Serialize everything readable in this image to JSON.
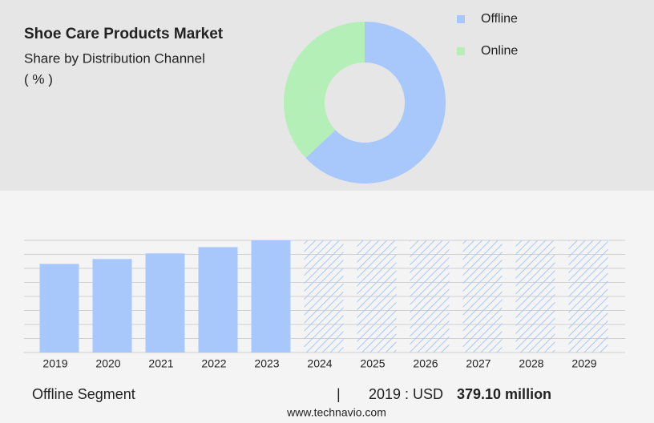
{
  "chart_data": [
    {
      "type": "pie",
      "title": "Shoe Care Products Market",
      "subtitle": "Share by Distribution Channel",
      "unit": "( % )",
      "categories": [
        "Offline",
        "Online"
      ],
      "values": [
        63,
        37
      ],
      "colors": [
        "#a8c8fb",
        "#b5efb8"
      ],
      "legend": "top-right"
    },
    {
      "type": "bar",
      "categories": [
        "2019",
        "2020",
        "2021",
        "2022",
        "2023",
        "2024",
        "2025",
        "2026",
        "2027",
        "2028",
        "2029"
      ],
      "values": [
        379.1,
        400,
        424,
        451,
        480,
        null,
        null,
        null,
        null,
        null,
        null
      ],
      "color": "#a8c8fb",
      "ylim": [
        0,
        480
      ],
      "yticks": [
        0,
        60,
        120,
        180,
        240,
        300,
        360,
        420,
        480
      ],
      "grid": true
    }
  ],
  "footer": {
    "segment": "Offline Segment",
    "separator": "|",
    "year_text": "2019 : USD",
    "value_text": "379.10 million",
    "source": "www.technavio.com"
  }
}
